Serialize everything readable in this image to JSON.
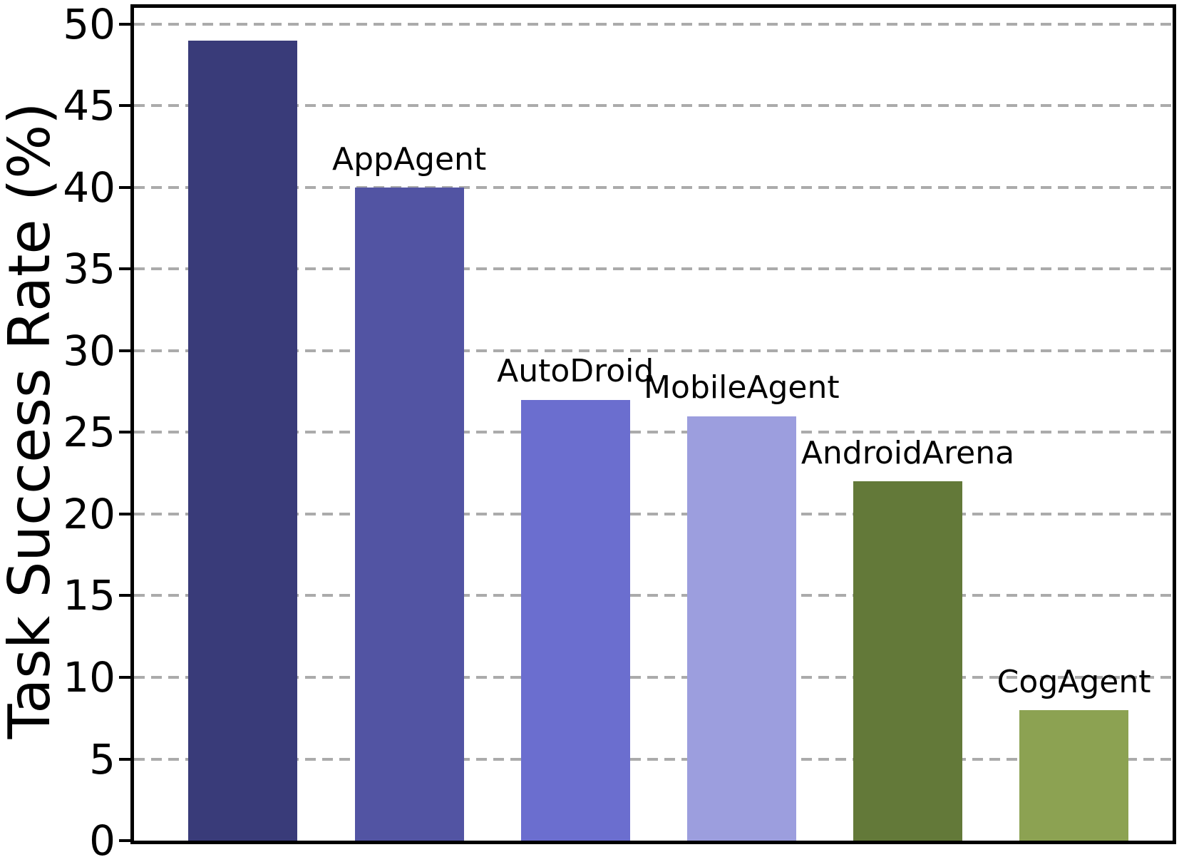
{
  "figure": {
    "background": "#ffffff",
    "frame_color": "#000000"
  },
  "chart_data": {
    "type": "bar",
    "title": "",
    "xlabel": "",
    "ylabel": "Task Success Rate (%)",
    "categories": [
      "",
      "AppAgent",
      "AutoDroid",
      "MobileAgent",
      "AndroidArena",
      "CogAgent"
    ],
    "values": [
      49,
      40,
      27,
      26,
      22,
      8
    ],
    "bar_colors": [
      "#393b79",
      "#5254a3",
      "#6b6ecf",
      "#9c9ede",
      "#637939",
      "#8ca252"
    ],
    "yticks": [
      0,
      5,
      10,
      15,
      20,
      25,
      30,
      35,
      40,
      45,
      50
    ],
    "ylim": [
      0,
      51
    ],
    "grid": "horizontal dashed gridlines at each ytick",
    "grid_color": "#ababab",
    "legend_position": "none",
    "annotation_note": "category names rendered as text labels above bars; first bar has no label"
  }
}
